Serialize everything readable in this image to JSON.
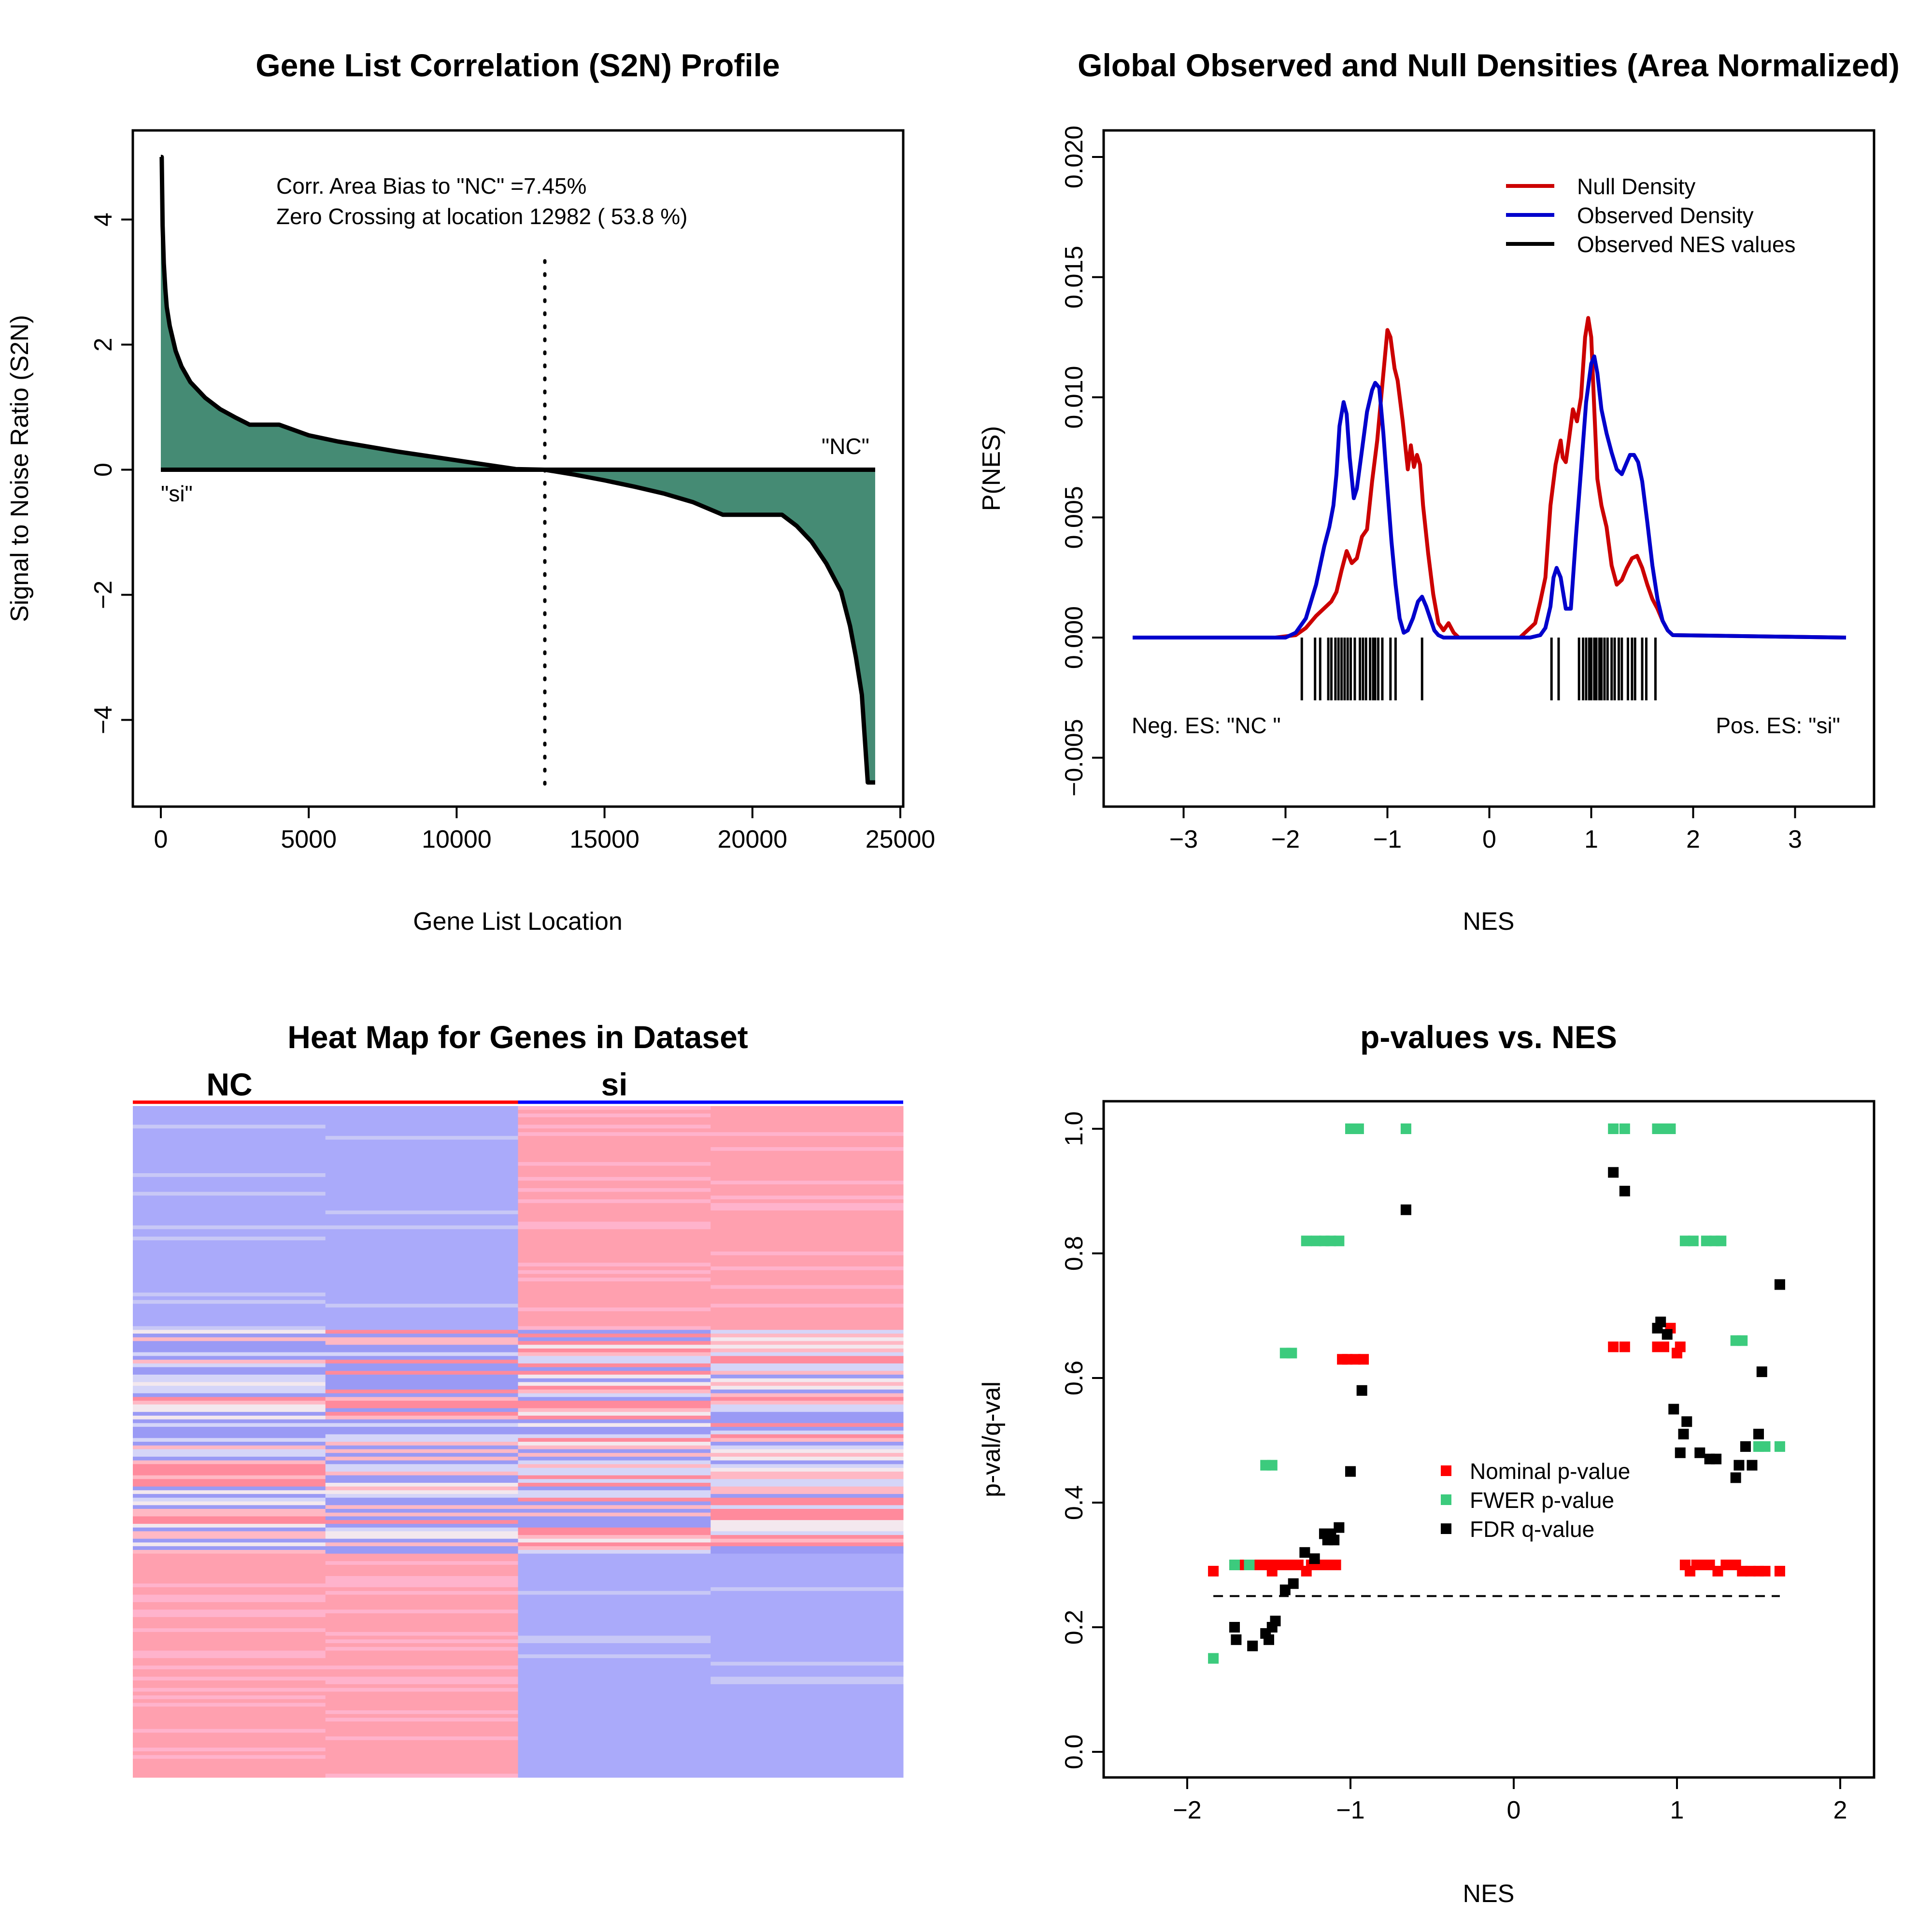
{
  "chart_data": [
    {
      "type": "area",
      "title": "Gene List Correlation (S2N) Profile",
      "xlabel": "Gene List Location",
      "ylabel": "Signal to Noise Ratio (S2N)",
      "xlim": [
        0,
        25000
      ],
      "ylim": [
        -5,
        5
      ],
      "xticks": [
        0,
        5000,
        10000,
        15000,
        20000,
        25000
      ],
      "yticks": [
        -4,
        -2,
        0,
        2,
        4
      ],
      "annotation_bias": "Corr. Area Bias to \"NC\" =7.45%",
      "annotation_zero": "Zero Crossing at location  12982  ( 53.8  %)",
      "label_left": "\"si\"",
      "label_right": "\"NC\"",
      "zero_crossing": 12982,
      "fill_color": "#458B74",
      "series": [
        {
          "x": [
            0,
            30,
            60,
            100,
            150,
            200,
            300,
            400,
            500,
            700,
            1000,
            1500,
            2000,
            2500,
            3000,
            4000,
            5000,
            6000,
            7000,
            8000,
            9000,
            10000,
            11000,
            12000,
            12982,
            14000,
            15000,
            16000,
            17000,
            18000,
            19000,
            20000,
            21000,
            21500,
            22000,
            22500,
            23000,
            23300,
            23500,
            23700,
            23800,
            23900,
            23950,
            24000,
            24100,
            24150
          ],
          "values": [
            5.0,
            5.0,
            3.9,
            3.3,
            2.9,
            2.6,
            2.3,
            2.1,
            1.9,
            1.65,
            1.4,
            1.15,
            0.97,
            0.84,
            0.72,
            0.72,
            0.55,
            0.45,
            0.37,
            0.29,
            0.22,
            0.15,
            0.08,
            0.01,
            0.0,
            -0.08,
            -0.17,
            -0.27,
            -0.38,
            -0.52,
            -0.72,
            -0.72,
            -0.72,
            -0.9,
            -1.15,
            -1.5,
            -1.95,
            -2.5,
            -3.0,
            -3.6,
            -4.3,
            -5.0,
            -5.0,
            -5.0,
            -5.0,
            -5.0
          ]
        }
      ]
    },
    {
      "type": "line",
      "title": "Global Observed and Null Densities (Area Normalized)",
      "xlabel": "NES",
      "ylabel": "P(NES)",
      "xlim": [
        -3.5,
        3.5
      ],
      "ylim": [
        -0.005,
        0.02
      ],
      "xticks": [
        -3,
        -2,
        -1,
        0,
        1,
        2,
        3
      ],
      "yticks": [
        -0.005,
        0.0,
        0.005,
        0.01,
        0.015,
        0.02
      ],
      "ytick_labels": [
        "−0.005",
        "0.000",
        "0.005",
        "0.010",
        "0.015",
        "0.020"
      ],
      "legend": "top-right",
      "label_neg": "Neg. ES: \"NC \"",
      "label_pos": "Pos. ES: \"si\"",
      "series": [
        {
          "name": "Null Density",
          "color": "#CC0000",
          "x": [
            -3.5,
            -2.1,
            -1.9,
            -1.8,
            -1.7,
            -1.6,
            -1.55,
            -1.5,
            -1.45,
            -1.4,
            -1.35,
            -1.3,
            -1.25,
            -1.2,
            -1.15,
            -1.1,
            -1.05,
            -1.0,
            -0.97,
            -0.93,
            -0.9,
            -0.85,
            -0.8,
            -0.77,
            -0.74,
            -0.71,
            -0.68,
            -0.65,
            -0.6,
            -0.55,
            -0.5,
            -0.45,
            -0.4,
            -0.35,
            -0.3,
            0.3,
            0.4,
            0.45,
            0.5,
            0.55,
            0.6,
            0.65,
            0.7,
            0.72,
            0.75,
            0.78,
            0.82,
            0.86,
            0.9,
            0.94,
            0.97,
            1.0,
            1.03,
            1.06,
            1.1,
            1.15,
            1.2,
            1.25,
            1.3,
            1.35,
            1.4,
            1.45,
            1.5,
            1.55,
            1.6,
            1.65,
            1.7,
            1.75,
            1.8,
            3.5
          ],
          "values": [
            0,
            0,
            0.0001,
            0.0004,
            0.0009,
            0.0013,
            0.0015,
            0.0019,
            0.0028,
            0.0036,
            0.0031,
            0.0033,
            0.0042,
            0.0045,
            0.0065,
            0.0082,
            0.0105,
            0.0128,
            0.0125,
            0.0112,
            0.0107,
            0.009,
            0.007,
            0.008,
            0.0071,
            0.0076,
            0.0072,
            0.0055,
            0.0035,
            0.0018,
            0.0006,
            0.0003,
            0.0006,
            0.0002,
            0,
            0,
            0.0004,
            0.0006,
            0.0015,
            0.0025,
            0.0055,
            0.0072,
            0.0082,
            0.0075,
            0.0073,
            0.0082,
            0.0095,
            0.009,
            0.01,
            0.0125,
            0.0133,
            0.0125,
            0.0095,
            0.0066,
            0.0055,
            0.0046,
            0.003,
            0.0022,
            0.0024,
            0.0029,
            0.0033,
            0.0034,
            0.0029,
            0.0022,
            0.0016,
            0.0012,
            0.0007,
            0.0003,
            0.0001,
            0
          ]
        },
        {
          "name": "Observed Density",
          "color": "#0000CC",
          "x": [
            -3.5,
            -2.0,
            -1.9,
            -1.8,
            -1.7,
            -1.62,
            -1.57,
            -1.53,
            -1.5,
            -1.47,
            -1.43,
            -1.4,
            -1.37,
            -1.33,
            -1.3,
            -1.25,
            -1.2,
            -1.15,
            -1.12,
            -1.08,
            -1.04,
            -1.0,
            -0.96,
            -0.92,
            -0.88,
            -0.84,
            -0.8,
            -0.75,
            -0.7,
            -0.66,
            -0.62,
            -0.58,
            -0.54,
            -0.5,
            -0.45,
            0.4,
            0.5,
            0.55,
            0.6,
            0.63,
            0.66,
            0.7,
            0.75,
            0.8,
            0.85,
            0.9,
            0.95,
            1.0,
            1.03,
            1.06,
            1.1,
            1.15,
            1.2,
            1.25,
            1.3,
            1.35,
            1.38,
            1.42,
            1.46,
            1.5,
            1.55,
            1.6,
            1.65,
            1.7,
            1.75,
            1.8,
            3.5
          ],
          "values": [
            0,
            0,
            0.0002,
            0.0008,
            0.0022,
            0.0038,
            0.0046,
            0.0055,
            0.0068,
            0.0088,
            0.0098,
            0.0093,
            0.0075,
            0.0058,
            0.0062,
            0.0078,
            0.0094,
            0.0103,
            0.0106,
            0.0104,
            0.0085,
            0.0062,
            0.004,
            0.0022,
            0.0008,
            0.0002,
            0.0003,
            0.0008,
            0.0015,
            0.0017,
            0.0013,
            0.0008,
            0.0003,
            0.0001,
            0,
            0,
            0.0001,
            0.0004,
            0.0013,
            0.0025,
            0.0029,
            0.0025,
            0.0012,
            0.0012,
            0.0042,
            0.007,
            0.0098,
            0.0114,
            0.0117,
            0.011,
            0.0095,
            0.0085,
            0.0077,
            0.007,
            0.0068,
            0.0073,
            0.0076,
            0.0076,
            0.0073,
            0.0065,
            0.0048,
            0.003,
            0.0016,
            0.0007,
            0.0003,
            0.0001,
            0
          ]
        },
        {
          "name": "Observed NES values",
          "color": "#000000",
          "rug": [
            -1.84,
            -1.71,
            -1.66,
            -1.58,
            -1.55,
            -1.51,
            -1.48,
            -1.45,
            -1.42,
            -1.39,
            -1.36,
            -1.32,
            -1.27,
            -1.24,
            -1.21,
            -1.17,
            -1.14,
            -1.12,
            -1.09,
            -1.05,
            -0.97,
            -0.92,
            -0.66,
            0.61,
            0.68,
            0.88,
            0.92,
            0.95,
            0.98,
            1.0,
            1.03,
            1.05,
            1.08,
            1.1,
            1.13,
            1.16,
            1.2,
            1.23,
            1.27,
            1.3,
            1.36,
            1.4,
            1.43,
            1.5,
            1.54,
            1.63
          ]
        }
      ]
    },
    {
      "type": "heatmap",
      "title": "Heat Map for Genes in Dataset",
      "groups": [
        "NC",
        "si"
      ],
      "group_colors": [
        "#FF0000",
        "#0000FF"
      ],
      "columns": 4,
      "row_blocks": [
        {
          "rows": 60,
          "pattern": "NC-low / si-high"
        },
        {
          "rows": 60,
          "pattern": "mixed"
        },
        {
          "rows": 60,
          "pattern": "NC-high / si-low"
        }
      ]
    },
    {
      "type": "scatter",
      "title": "p-values vs. NES",
      "xlabel": "NES",
      "ylabel": "p-val/q-val",
      "xlim": [
        -2.5,
        2.2
      ],
      "ylim": [
        -0.05,
        1.03
      ],
      "xticks": [
        -2,
        -1,
        0,
        1,
        2
      ],
      "yticks": [
        0.0,
        0.2,
        0.4,
        0.6,
        0.8,
        1.0
      ],
      "threshold": 0.25,
      "legend": "center-right",
      "series": [
        {
          "name": "Nominal p-value",
          "color": "#FF0000",
          "points": [
            [
              -1.84,
              0.29
            ],
            [
              -1.71,
              0.3
            ],
            [
              -1.66,
              0.3
            ],
            [
              -1.58,
              0.3
            ],
            [
              -1.55,
              0.3
            ],
            [
              -1.51,
              0.3
            ],
            [
              -1.48,
              0.29
            ],
            [
              -1.45,
              0.3
            ],
            [
              -1.42,
              0.3
            ],
            [
              -1.39,
              0.3
            ],
            [
              -1.36,
              0.3
            ],
            [
              -1.32,
              0.3
            ],
            [
              -1.27,
              0.29
            ],
            [
              -1.24,
              0.3
            ],
            [
              -1.21,
              0.3
            ],
            [
              -1.17,
              0.3
            ],
            [
              -1.14,
              0.3
            ],
            [
              -1.12,
              0.3
            ],
            [
              -1.09,
              0.3
            ],
            [
              -1.05,
              0.63
            ],
            [
              -1.02,
              0.63
            ],
            [
              -0.97,
              0.63
            ],
            [
              -0.92,
              0.63
            ],
            [
              0.61,
              0.65
            ],
            [
              0.68,
              0.65
            ],
            [
              0.88,
              0.65
            ],
            [
              0.92,
              0.65
            ],
            [
              0.96,
              0.68
            ],
            [
              1.0,
              0.64
            ],
            [
              1.02,
              0.65
            ],
            [
              1.05,
              0.3
            ],
            [
              1.08,
              0.29
            ],
            [
              1.12,
              0.3
            ],
            [
              1.16,
              0.3
            ],
            [
              1.2,
              0.3
            ],
            [
              1.25,
              0.29
            ],
            [
              1.3,
              0.3
            ],
            [
              1.36,
              0.3
            ],
            [
              1.4,
              0.29
            ],
            [
              1.45,
              0.29
            ],
            [
              1.5,
              0.29
            ],
            [
              1.54,
              0.29
            ],
            [
              1.63,
              0.29
            ]
          ]
        },
        {
          "name": "FWER p-value",
          "color": "#3CCB7D",
          "points": [
            [
              -1.84,
              0.15
            ],
            [
              -1.71,
              0.3
            ],
            [
              -1.62,
              0.3
            ],
            [
              -1.52,
              0.46
            ],
            [
              -1.48,
              0.46
            ],
            [
              -1.4,
              0.64
            ],
            [
              -1.36,
              0.64
            ],
            [
              -1.27,
              0.82
            ],
            [
              -1.21,
              0.82
            ],
            [
              -1.16,
              0.82
            ],
            [
              -1.12,
              0.82
            ],
            [
              -1.07,
              0.82
            ],
            [
              -1.0,
              1.0
            ],
            [
              -0.95,
              1.0
            ],
            [
              -0.66,
              1.0
            ],
            [
              0.61,
              1.0
            ],
            [
              0.68,
              1.0
            ],
            [
              0.88,
              1.0
            ],
            [
              0.92,
              1.0
            ],
            [
              0.96,
              1.0
            ],
            [
              1.05,
              0.82
            ],
            [
              1.1,
              0.82
            ],
            [
              1.18,
              0.82
            ],
            [
              1.23,
              0.82
            ],
            [
              1.27,
              0.82
            ],
            [
              1.36,
              0.66
            ],
            [
              1.4,
              0.66
            ],
            [
              1.5,
              0.49
            ],
            [
              1.54,
              0.49
            ],
            [
              1.63,
              0.49
            ]
          ]
        },
        {
          "name": "FDR q-value",
          "color": "#000000",
          "points": [
            [
              -1.71,
              0.2
            ],
            [
              -1.7,
              0.18
            ],
            [
              -1.6,
              0.17
            ],
            [
              -1.52,
              0.19
            ],
            [
              -1.5,
              0.18
            ],
            [
              -1.48,
              0.2
            ],
            [
              -1.46,
              0.21
            ],
            [
              -1.4,
              0.26
            ],
            [
              -1.35,
              0.27
            ],
            [
              -1.28,
              0.32
            ],
            [
              -1.22,
              0.31
            ],
            [
              -1.16,
              0.35
            ],
            [
              -1.14,
              0.34
            ],
            [
              -1.12,
              0.35
            ],
            [
              -1.1,
              0.34
            ],
            [
              -1.07,
              0.36
            ],
            [
              -1.0,
              0.45
            ],
            [
              -0.93,
              0.58
            ],
            [
              -0.66,
              0.87
            ],
            [
              0.61,
              0.93
            ],
            [
              0.68,
              0.9
            ],
            [
              0.88,
              0.68
            ],
            [
              0.9,
              0.69
            ],
            [
              0.94,
              0.67
            ],
            [
              0.98,
              0.55
            ],
            [
              1.02,
              0.48
            ],
            [
              1.04,
              0.51
            ],
            [
              1.06,
              0.53
            ],
            [
              1.14,
              0.48
            ],
            [
              1.2,
              0.47
            ],
            [
              1.24,
              0.47
            ],
            [
              1.36,
              0.44
            ],
            [
              1.38,
              0.46
            ],
            [
              1.42,
              0.49
            ],
            [
              1.46,
              0.46
            ],
            [
              1.5,
              0.51
            ],
            [
              1.52,
              0.61
            ],
            [
              1.63,
              0.75
            ]
          ]
        }
      ]
    }
  ]
}
